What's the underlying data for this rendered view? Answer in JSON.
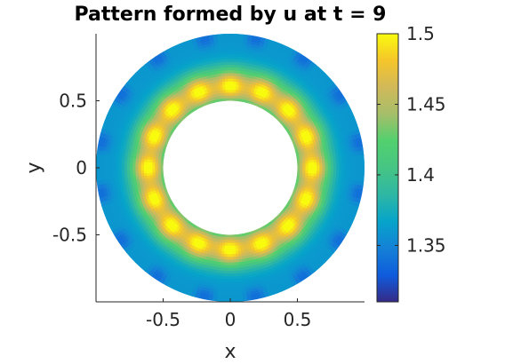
{
  "chart_data": {
    "type": "heatmap",
    "title": "Pattern formed by u at t = 9",
    "xlabel": "x",
    "ylabel": "y",
    "xlim": [
      -1,
      1
    ],
    "ylim": [
      -1,
      1
    ],
    "x_ticks": [
      "-0.5",
      "0",
      "0.5"
    ],
    "y_ticks": [
      "0.5",
      "0",
      "-0.5"
    ],
    "x_tick_values": [
      -0.5,
      0,
      0.5
    ],
    "y_tick_values": [
      0.5,
      0,
      -0.5
    ],
    "domain": {
      "shape": "annulus",
      "inner_radius": 0.5,
      "outer_radius": 1.0
    },
    "colorbar": {
      "colormap": "parula",
      "min": 1.31,
      "max": 1.5,
      "ticks": [
        "1.5",
        "1.45",
        "1.4",
        "1.35"
      ],
      "tick_values": [
        1.5,
        1.45,
        1.4,
        1.35
      ]
    },
    "field_description": {
      "inner_ring_peak_value": 1.49,
      "outer_edge_value": 1.36,
      "min_spot_value": 1.32,
      "angular_spots": 16
    },
    "grid": false,
    "colorbar_placement": "right"
  }
}
